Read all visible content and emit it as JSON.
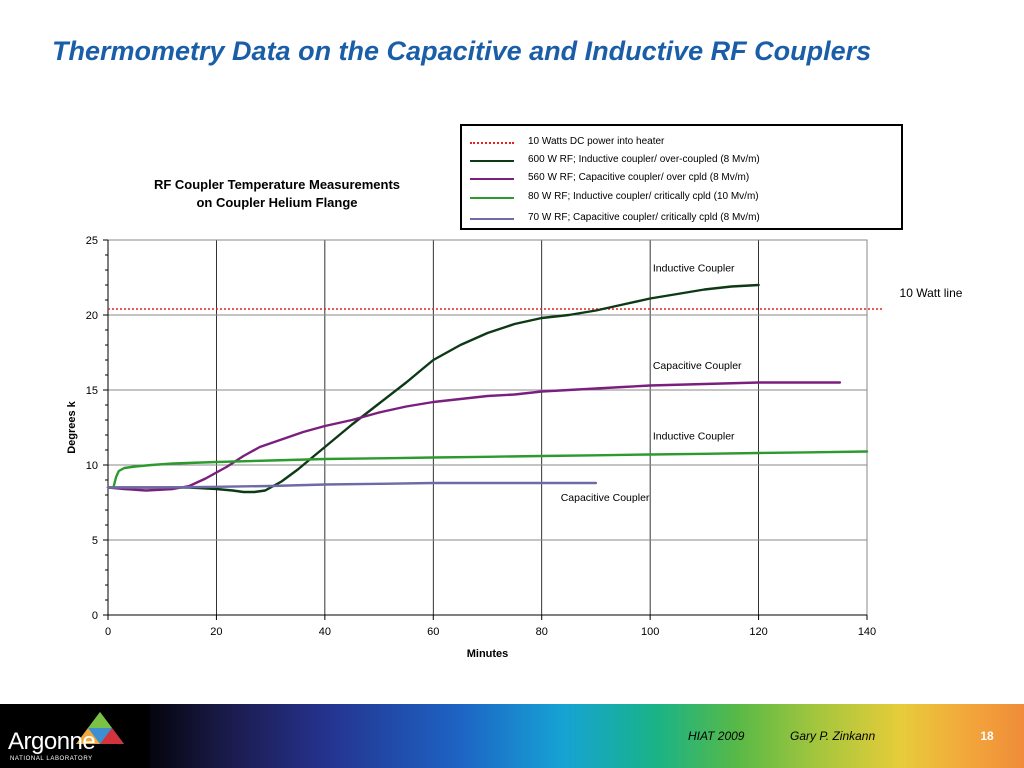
{
  "slide": {
    "title": "Thermometry Data on the Capacitive and Inductive RF Couplers",
    "footer_event": "HIAT 2009",
    "footer_author": "Gary P. Zinkann",
    "page_number": "18",
    "logo": {
      "name": "Argonne",
      "subtitle": "NATIONAL LABORATORY"
    }
  },
  "chart_data": {
    "type": "line",
    "title_lines": [
      "RF Coupler Temperature Measurements",
      "on Coupler Helium Flange"
    ],
    "xlabel": "Minutes",
    "ylabel": "Degrees k",
    "xlim": [
      0,
      140
    ],
    "ylim": [
      0,
      25
    ],
    "xticks": [
      0,
      20,
      40,
      60,
      80,
      100,
      120,
      140
    ],
    "yticks": [
      0,
      5,
      10,
      15,
      20,
      25
    ],
    "grid": "vertical",
    "legend_position": "top-right",
    "series": [
      {
        "name": "10 Watts DC power into heater",
        "legend_text": "10 Watts DC power into heater",
        "color": "#e8221b",
        "style": "dotted",
        "x": [
          0,
          143
        ],
        "y": [
          20.4,
          20.4
        ]
      },
      {
        "name": "600 W RF; Inductive coupler/ over-coupled (8 Mv/m)",
        "legend_text": "600 W RF; Inductive coupler/ over-coupled (8 Mv/m)",
        "color": "#0d3a16",
        "style": "solid",
        "x": [
          0,
          5,
          10,
          15,
          20,
          23,
          25,
          27,
          29,
          32,
          35,
          38,
          40,
          45,
          50,
          55,
          58,
          60,
          65,
          70,
          75,
          80,
          85,
          90,
          95,
          100,
          105,
          110,
          115,
          120
        ],
        "y": [
          8.5,
          8.5,
          8.5,
          8.5,
          8.4,
          8.3,
          8.2,
          8.2,
          8.3,
          8.9,
          9.7,
          10.6,
          11.2,
          12.7,
          14.1,
          15.5,
          16.4,
          17.0,
          18.0,
          18.8,
          19.4,
          19.8,
          20.0,
          20.3,
          20.7,
          21.1,
          21.4,
          21.7,
          21.9,
          22.0
        ]
      },
      {
        "name": "560 W RF; Capacitive coupler/ over cpld (8 Mv/m)",
        "legend_text": "560 W RF; Capacitive coupler/ over cpld (8 Mv/m)",
        "color": "#7b1f7e",
        "style": "solid",
        "x": [
          0,
          3,
          7,
          12,
          15,
          18,
          22,
          25,
          28,
          32,
          36,
          40,
          45,
          50,
          55,
          60,
          65,
          70,
          75,
          80,
          85,
          90,
          95,
          100,
          110,
          120,
          130,
          135
        ],
        "y": [
          8.5,
          8.4,
          8.3,
          8.4,
          8.6,
          9.1,
          9.9,
          10.6,
          11.2,
          11.7,
          12.2,
          12.6,
          13.0,
          13.5,
          13.9,
          14.2,
          14.4,
          14.6,
          14.7,
          14.9,
          15.0,
          15.1,
          15.2,
          15.3,
          15.4,
          15.5,
          15.5,
          15.5
        ]
      },
      {
        "name": "80 W RF; Inductive coupler/ critically cpld (10 Mv/m)",
        "legend_text": "80 W RF; Inductive coupler/ critically cpld (10 Mv/m)",
        "color": "#2c9a2c",
        "style": "solid",
        "x": [
          0,
          1,
          1.5,
          2,
          3,
          5,
          8,
          12,
          20,
          30,
          40,
          50,
          60,
          70,
          80,
          90,
          100,
          110,
          120,
          130,
          140
        ],
        "y": [
          8.5,
          8.5,
          9.2,
          9.6,
          9.8,
          9.9,
          10.0,
          10.1,
          10.2,
          10.3,
          10.4,
          10.45,
          10.5,
          10.55,
          10.6,
          10.65,
          10.7,
          10.75,
          10.8,
          10.85,
          10.9
        ]
      },
      {
        "name": "70 W RF; Capacitive coupler/ critically cpld (8 Mv/m)",
        "legend_text": "70 W RF; Capacitive coupler/ critically cpld (8 Mv/m)",
        "color": "#6e6aa6",
        "style": "solid",
        "x": [
          0,
          10,
          20,
          30,
          40,
          50,
          60,
          70,
          80,
          90
        ],
        "y": [
          8.5,
          8.5,
          8.55,
          8.6,
          8.7,
          8.75,
          8.8,
          8.8,
          8.8,
          8.8
        ]
      }
    ],
    "annotations": [
      {
        "text": "Inductive Coupler",
        "x": 100.5,
        "y": 22.9
      },
      {
        "text": "10 Watt line",
        "x": 146,
        "y": 21.2
      },
      {
        "text": "Capacitive Coupler",
        "x": 100.5,
        "y": 16.4
      },
      {
        "text": "Inductive Coupler",
        "x": 100.5,
        "y": 11.7
      },
      {
        "text": "Capacitive Coupler",
        "x": 83.5,
        "y": 7.6
      }
    ]
  }
}
